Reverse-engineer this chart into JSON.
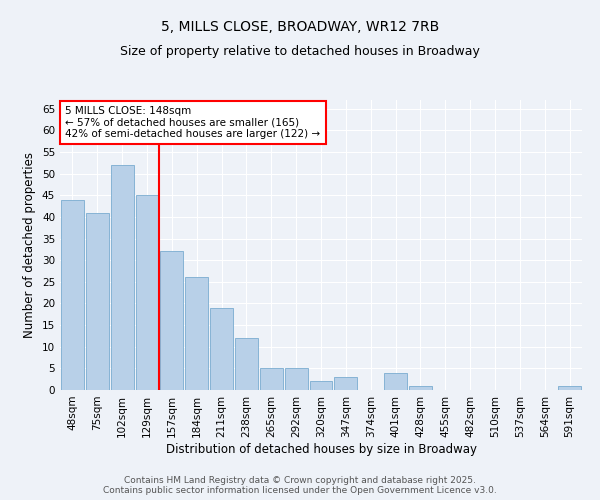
{
  "title": "5, MILLS CLOSE, BROADWAY, WR12 7RB",
  "subtitle": "Size of property relative to detached houses in Broadway",
  "xlabel": "Distribution of detached houses by size in Broadway",
  "ylabel": "Number of detached properties",
  "bar_labels": [
    "48sqm",
    "75sqm",
    "102sqm",
    "129sqm",
    "157sqm",
    "184sqm",
    "211sqm",
    "238sqm",
    "265sqm",
    "292sqm",
    "320sqm",
    "347sqm",
    "374sqm",
    "401sqm",
    "428sqm",
    "455sqm",
    "482sqm",
    "510sqm",
    "537sqm",
    "564sqm",
    "591sqm"
  ],
  "bar_values": [
    44,
    41,
    52,
    45,
    32,
    26,
    19,
    12,
    5,
    5,
    2,
    3,
    0,
    4,
    1,
    0,
    0,
    0,
    0,
    0,
    1
  ],
  "bar_color": "#b8d0e8",
  "bar_edgecolor": "#7aacd0",
  "vline_color": "red",
  "vline_x_index": 3.5,
  "annotation_text": "5 MILLS CLOSE: 148sqm\n← 57% of detached houses are smaller (165)\n42% of semi-detached houses are larger (122) →",
  "annotation_box_color": "white",
  "annotation_box_edgecolor": "red",
  "ylim": [
    0,
    67
  ],
  "yticks": [
    0,
    5,
    10,
    15,
    20,
    25,
    30,
    35,
    40,
    45,
    50,
    55,
    60,
    65
  ],
  "background_color": "#eef2f8",
  "grid_color": "white",
  "footer_line1": "Contains HM Land Registry data © Crown copyright and database right 2025.",
  "footer_line2": "Contains public sector information licensed under the Open Government Licence v3.0.",
  "title_fontsize": 10,
  "subtitle_fontsize": 9,
  "axis_label_fontsize": 8.5,
  "tick_fontsize": 7.5,
  "annotation_fontsize": 7.5,
  "footer_fontsize": 6.5
}
